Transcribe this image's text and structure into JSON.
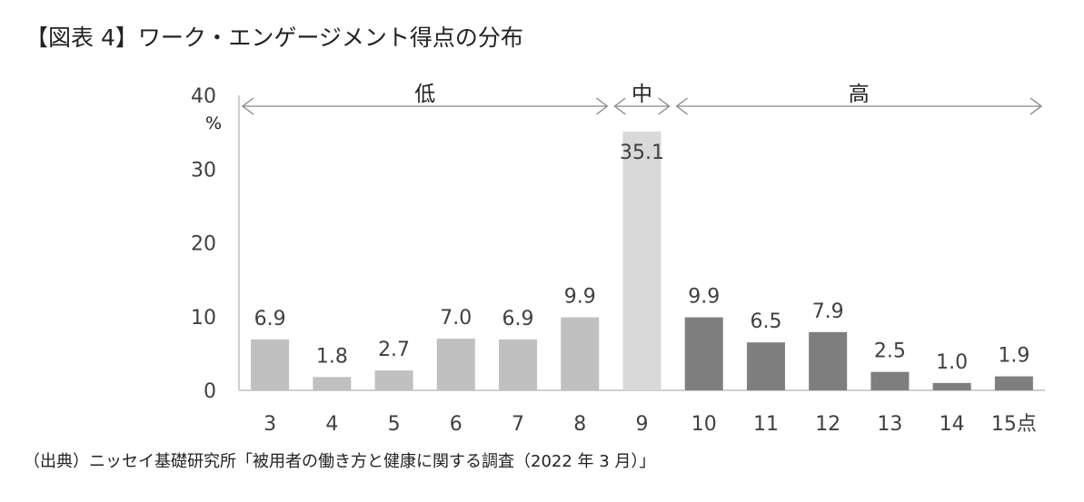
{
  "title": "【図表 4】ワーク・エンゲージメント得点の分布",
  "source": "（出典）ニッセイ基礎研究所「被用者の働き方と健康に関する調査（2022 年 3 月）」",
  "chart_data": {
    "type": "bar",
    "categories": [
      "3",
      "4",
      "5",
      "6",
      "7",
      "8",
      "9",
      "10",
      "11",
      "12",
      "13",
      "14",
      "15点"
    ],
    "values": [
      6.9,
      1.8,
      2.7,
      7.0,
      6.9,
      9.9,
      35.1,
      9.9,
      6.5,
      7.9,
      2.5,
      1.0,
      1.9
    ],
    "data_labels": [
      "6.9",
      "1.8",
      "2.7",
      "7.0",
      "6.9",
      "9.9",
      "35.1",
      "9.9",
      "6.5",
      "7.9",
      "2.5",
      "1.0",
      "1.9"
    ],
    "ylim": [
      0,
      40
    ],
    "yticks": [
      0,
      10,
      20,
      30,
      40
    ],
    "ylabel": "%",
    "groups": [
      {
        "name": "低",
        "start": 0,
        "end": 5,
        "color": "#c0c0c0"
      },
      {
        "name": "中",
        "start": 6,
        "end": 6,
        "color": "#d9d9d9"
      },
      {
        "name": "高",
        "start": 7,
        "end": 12,
        "color": "#7f7f7f"
      }
    ],
    "grid": false
  }
}
